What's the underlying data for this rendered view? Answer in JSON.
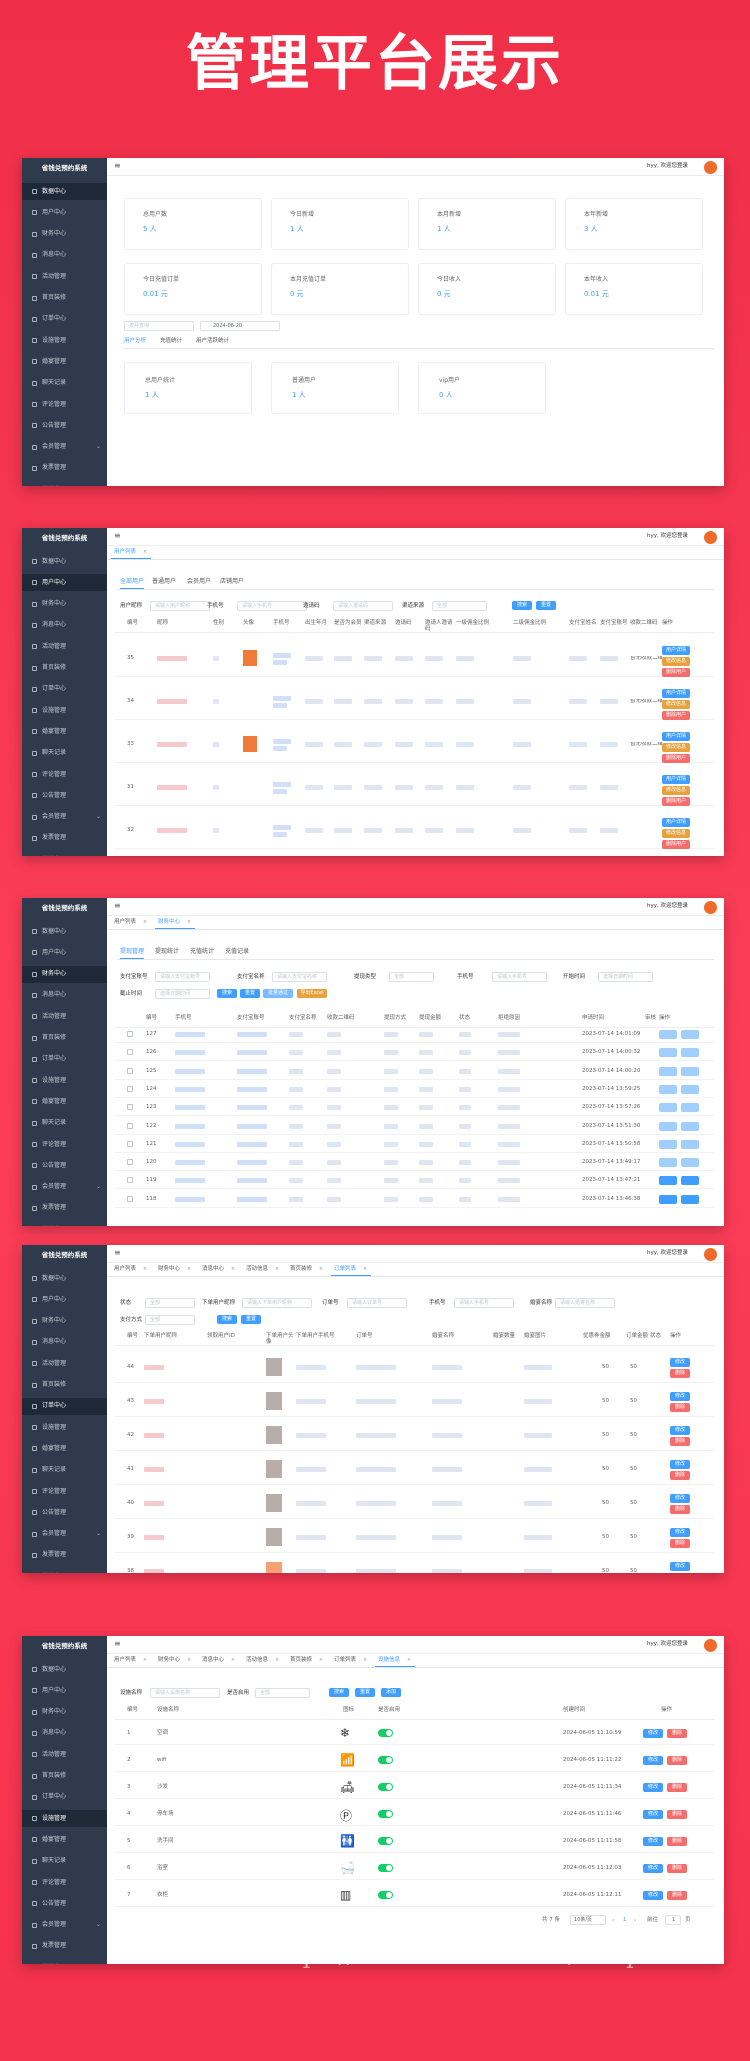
{
  "header": {
    "title": "管理平台展示"
  },
  "app": {
    "brand": "省钱兑预约系统",
    "menu": [
      "数据中心",
      "用户中心",
      "财务中心",
      "消息中心",
      "活动管理",
      "首页装修",
      "订单中心",
      "设施管理",
      "婚宴管理",
      "聊天记录",
      "评论管理",
      "公告管理",
      "会员管理",
      "发票管理",
      "营销中心"
    ],
    "user": "hyy, 欢迎您登录"
  },
  "dashboard": {
    "stats": [
      {
        "label": "总用户数",
        "value": "5 人"
      },
      {
        "label": "今日新增",
        "value": "1 人"
      },
      {
        "label": "本月新增",
        "value": "1 人"
      },
      {
        "label": "本年新增",
        "value": "3 人"
      },
      {
        "label": "今日充值订单",
        "value": "0.01 元"
      },
      {
        "label": "本月充值订单",
        "value": "0 元"
      },
      {
        "label": "今日收入",
        "value": "0 元"
      },
      {
        "label": "本年收入",
        "value": "0.01 元"
      }
    ],
    "select": "按月查询",
    "date": "2024-06-20",
    "tabs": [
      "用户分析",
      "充值统计",
      "用户活跃统计"
    ],
    "summary": [
      {
        "label": "总用户统计",
        "value": "1 人"
      },
      {
        "label": "普通用户",
        "value": "1 人"
      },
      {
        "label": "vip用户",
        "value": "0 人"
      }
    ]
  },
  "users": {
    "tabs": [
      "用户列表"
    ],
    "subtabs": [
      "全部用户",
      "普通用户",
      "会员用户",
      "店铺用户"
    ],
    "filters": [
      "用户昵称",
      "手机号",
      "邀请码",
      "渠道来源"
    ],
    "placeholders": [
      "请输入用户昵称",
      "请输入手机号",
      "请输入邀请码",
      "全部"
    ],
    "buttons": [
      "搜索",
      "重置"
    ],
    "columns": [
      "编号",
      "昵称",
      "性别",
      "头像",
      "手机号",
      "出生年月",
      "是否为会员",
      "渠道来源",
      "邀请码",
      "邀请人邀请码",
      "一级佣金比例",
      "二级佣金比例",
      "支付宝姓名",
      "支付宝账号",
      "收款二维码",
      "操作"
    ],
    "rows": [
      {
        "id": "35",
        "qr": "暂无收款二维码"
      },
      {
        "id": "34",
        "qr": "暂无收款二维码"
      },
      {
        "id": "33",
        "qr": "暂无收款二维码"
      },
      {
        "id": "31",
        "qr": null
      },
      {
        "id": "32",
        "qr": null
      }
    ],
    "actions": [
      "用户详情",
      "修改信息",
      "删除用户"
    ]
  },
  "finance": {
    "tabs": [
      "用户列表",
      "财务中心"
    ],
    "subtabs": [
      "提现管理",
      "提现统计",
      "充值统计",
      "充值记录"
    ],
    "filters": [
      "支付宝账号",
      "支付宝名称",
      "提现类型",
      "手机号",
      "开始时间",
      "截止时间"
    ],
    "placeholders": [
      "请输入支付宝账号",
      "请输入支付宝名称",
      "全部",
      "请输入手机号",
      "选择日期时间",
      "选择日期时间"
    ],
    "buttons": [
      "搜索",
      "重置",
      "批量通过",
      "导出Excel"
    ],
    "columns": [
      "编号",
      "手机号",
      "支付宝账号",
      "支付宝名称",
      "收款二维码",
      "提现方式",
      "提现金额",
      "状态",
      "拒绝原因",
      "申请时间",
      "审核",
      "操作"
    ],
    "rows": [
      {
        "id": "127",
        "time": "2023-07-14 14:01:09"
      },
      {
        "id": "126",
        "time": "2023-07-14 14:00:32"
      },
      {
        "id": "125",
        "time": "2023-07-14 14:00:20"
      },
      {
        "id": "124",
        "time": "2023-07-14 13:59:25"
      },
      {
        "id": "123",
        "time": "2023-07-14 13:57:26"
      },
      {
        "id": "122",
        "time": "2023-07-14 13:51:30"
      },
      {
        "id": "121",
        "time": "2023-07-14 13:50:58"
      },
      {
        "id": "120",
        "time": "2023-07-14 13:49:17"
      },
      {
        "id": "119",
        "time": "2023-07-14 13:47:21"
      },
      {
        "id": "118",
        "time": "2023-07-14 13:46:38"
      }
    ]
  },
  "orders": {
    "tabs": [
      "用户列表",
      "财务中心",
      "消息中心",
      "活动信息",
      "首页装修",
      "订单列表"
    ],
    "filters": [
      "状态",
      "下单用户昵称",
      "订单号",
      "手机号",
      "婚宴名称",
      "支付方式"
    ],
    "placeholders": [
      "全部",
      "请输入下单用户昵称",
      "请输入订单号",
      "请输入手机号",
      "请输入婚宴名称",
      "全部"
    ],
    "buttons": [
      "搜索",
      "重置"
    ],
    "columns": [
      "编号",
      "下单用户昵称",
      "领取用户ID",
      "下单用户头像",
      "下单用户手机号",
      "订单号",
      "婚宴名称",
      "婚宴数量",
      "婚宴图片",
      "优惠券金额",
      "订单金额",
      "状态",
      "操作"
    ],
    "rows": [
      {
        "id": "44",
        "count": "50",
        "amount": "50"
      },
      {
        "id": "43",
        "count": "50",
        "amount": "50"
      },
      {
        "id": "42",
        "count": "50",
        "amount": "50"
      },
      {
        "id": "41",
        "count": "50",
        "amount": "50"
      },
      {
        "id": "40",
        "count": "50",
        "amount": "50"
      },
      {
        "id": "39",
        "count": "50",
        "amount": "50"
      },
      {
        "id": "38",
        "count": "50",
        "amount": "50"
      }
    ],
    "actions": [
      "修改",
      "删除"
    ]
  },
  "facilities": {
    "tabs": [
      "用户列表",
      "财务中心",
      "消息中心",
      "活动信息",
      "首页装修",
      "订单列表",
      "设施信息"
    ],
    "filters": [
      "设施名称",
      "是否启用"
    ],
    "placeholders": [
      "请输入设施名称",
      "全部"
    ],
    "buttons": [
      "搜索",
      "重置",
      "添加"
    ],
    "columns": [
      "编号",
      "设施名称",
      "图标",
      "是否启用",
      "创建时间",
      "操作"
    ],
    "rows": [
      {
        "id": "1",
        "name": "空调",
        "time": "2024-06-05 11:10:59"
      },
      {
        "id": "2",
        "name": "wifi",
        "time": "2024-06-05 11:11:22"
      },
      {
        "id": "3",
        "name": "沙发",
        "time": "2024-06-05 11:11:34"
      },
      {
        "id": "4",
        "name": "停车场",
        "time": "2024-06-05 11:11:46"
      },
      {
        "id": "5",
        "name": "洗手间",
        "time": "2024-06-05 11:11:58"
      },
      {
        "id": "6",
        "name": "浴室",
        "time": "2024-06-05 11:12:03"
      },
      {
        "id": "7",
        "name": "衣柜",
        "time": "2024-06-05 11:12:11"
      }
    ],
    "actions": [
      "修改",
      "删除"
    ],
    "pagination": {
      "total": "共 7 条",
      "size": "10条/页",
      "page": "1",
      "goto": "前往",
      "unit": "页"
    }
  },
  "watermark": "https://www.huzhan.com/ishop38445"
}
